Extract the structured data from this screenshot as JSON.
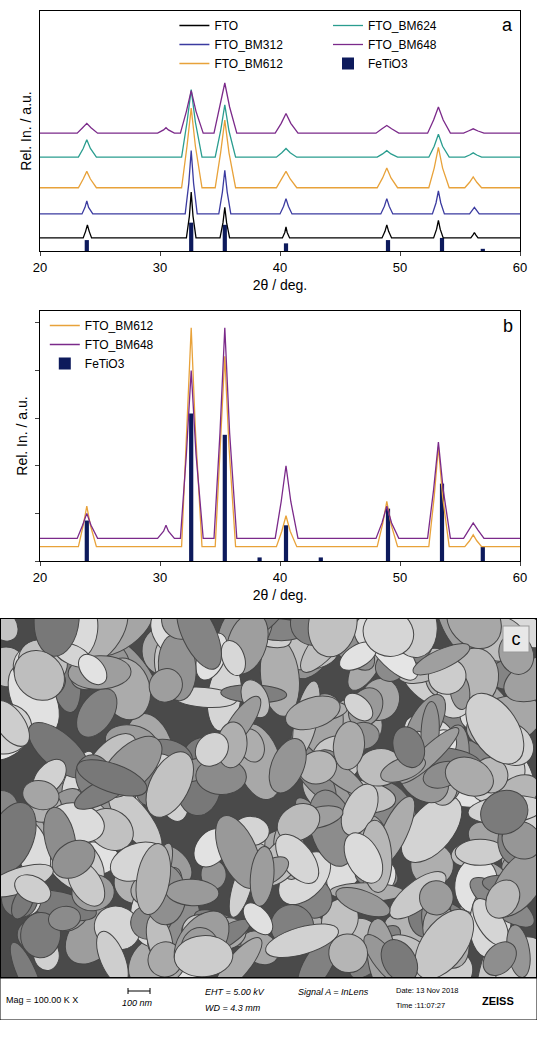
{
  "chart_data": [
    {
      "type": "line",
      "annotations": [
        "a"
      ],
      "x_label": "2θ / deg.",
      "y_label": "Rel. In. / a.u.",
      "xlim": [
        20,
        60
      ],
      "xticks": [
        20,
        30,
        40,
        50,
        60
      ],
      "ylim": [
        0,
        11
      ],
      "tick_labels": "x",
      "grid": false,
      "legend": "top",
      "series": [
        {
          "name": "FTO",
          "color": "#000000",
          "x": [
            20,
            23.6,
            23.8,
            23.95,
            24.1,
            24.3,
            32.2,
            32.45,
            32.6,
            32.75,
            33.0,
            35.0,
            35.25,
            35.4,
            35.55,
            35.8,
            40.2,
            40.4,
            40.5,
            40.6,
            40.8,
            48.5,
            48.75,
            48.9,
            49.05,
            49.3,
            52.8,
            53.05,
            53.2,
            53.35,
            53.6,
            55.9,
            56.1,
            56.2,
            56.3,
            56.5,
            60
          ],
          "values": [
            0.6,
            0.6,
            0.9,
            1.2,
            0.9,
            0.6,
            0.6,
            1.6,
            2.7,
            1.6,
            0.6,
            0.6,
            1.3,
            2.0,
            1.3,
            0.6,
            0.6,
            0.85,
            1.1,
            0.85,
            0.6,
            0.6,
            0.9,
            1.2,
            0.9,
            0.6,
            0.6,
            1.0,
            1.4,
            1.0,
            0.6,
            0.6,
            0.75,
            0.85,
            0.75,
            0.6,
            0.6
          ]
        },
        {
          "name": "FTO_BM312",
          "color": "#3b3ba0",
          "x": [
            20,
            23.5,
            23.75,
            23.9,
            24.05,
            24.4,
            32.1,
            32.4,
            32.6,
            32.8,
            33.1,
            34.9,
            35.2,
            35.4,
            35.6,
            35.9,
            40.0,
            40.3,
            40.5,
            40.7,
            41.0,
            48.4,
            48.7,
            48.9,
            49.1,
            49.4,
            52.7,
            53.0,
            53.2,
            53.4,
            53.7,
            55.8,
            56.0,
            56.2,
            56.4,
            56.6,
            60
          ],
          "values": [
            1.7,
            1.7,
            2.0,
            2.3,
            2.0,
            1.7,
            1.7,
            3.1,
            4.6,
            3.1,
            1.7,
            1.7,
            2.7,
            3.7,
            2.7,
            1.7,
            1.7,
            2.05,
            2.4,
            2.05,
            1.7,
            1.7,
            2.05,
            2.4,
            2.05,
            1.7,
            1.7,
            2.2,
            2.75,
            2.2,
            1.7,
            1.7,
            1.85,
            2.0,
            1.85,
            1.7,
            1.7
          ]
        },
        {
          "name": "FTO_BM612",
          "color": "#e8a23a",
          "x": [
            20,
            23.2,
            23.6,
            23.9,
            24.2,
            24.7,
            31.8,
            32.25,
            32.6,
            32.95,
            33.5,
            34.6,
            35.05,
            35.4,
            35.75,
            36.3,
            39.7,
            40.15,
            40.5,
            40.85,
            41.4,
            48.1,
            48.55,
            48.9,
            49.25,
            49.8,
            52.4,
            52.85,
            53.2,
            53.55,
            54.1,
            55.4,
            55.8,
            56.1,
            56.4,
            56.8,
            60
          ],
          "values": [
            2.9,
            2.9,
            3.3,
            3.65,
            3.3,
            2.9,
            2.9,
            4.8,
            6.55,
            4.8,
            2.9,
            2.9,
            4.5,
            6.0,
            4.5,
            2.9,
            2.9,
            3.3,
            3.65,
            3.3,
            2.9,
            2.9,
            3.35,
            3.8,
            3.35,
            2.9,
            2.9,
            3.8,
            4.75,
            3.8,
            2.9,
            2.9,
            3.15,
            3.4,
            3.15,
            2.9,
            2.9
          ]
        },
        {
          "name": "FTO_BM624",
          "color": "#2a9d8f",
          "x": [
            20,
            23.2,
            23.6,
            23.9,
            24.2,
            24.7,
            31.8,
            32.25,
            32.6,
            32.95,
            33.5,
            34.6,
            35.05,
            35.4,
            35.75,
            36.3,
            39.7,
            40.15,
            40.5,
            40.85,
            41.4,
            48.1,
            48.55,
            48.9,
            49.25,
            49.8,
            52.4,
            52.85,
            53.2,
            53.55,
            54.1,
            55.4,
            55.8,
            56.1,
            56.4,
            56.8,
            60
          ],
          "values": [
            4.3,
            4.3,
            4.7,
            5.1,
            4.7,
            4.3,
            4.3,
            5.9,
            7.4,
            5.9,
            4.3,
            4.3,
            5.5,
            6.7,
            5.5,
            4.3,
            4.3,
            4.5,
            4.7,
            4.5,
            4.3,
            4.3,
            4.45,
            4.6,
            4.45,
            4.3,
            4.3,
            4.8,
            5.35,
            4.8,
            4.3,
            4.3,
            4.4,
            4.5,
            4.4,
            4.3,
            4.3
          ]
        },
        {
          "name": "FTO_BM648",
          "color": "#7b2a8a",
          "x": [
            20,
            23.1,
            23.55,
            23.9,
            24.25,
            24.8,
            29.8,
            30.3,
            30.5,
            30.7,
            31.2,
            31.7,
            32.2,
            32.6,
            33.0,
            33.6,
            34.5,
            35.0,
            35.4,
            35.8,
            36.4,
            39.6,
            40.1,
            40.5,
            40.9,
            41.5,
            48.0,
            48.5,
            48.9,
            49.3,
            49.9,
            52.3,
            52.8,
            53.2,
            53.6,
            54.2,
            55.3,
            55.7,
            56.1,
            56.5,
            57.0,
            60
          ],
          "values": [
            5.4,
            5.4,
            5.65,
            5.85,
            5.65,
            5.4,
            5.4,
            5.55,
            5.65,
            5.55,
            5.4,
            5.4,
            6.4,
            7.35,
            6.4,
            5.4,
            5.4,
            6.6,
            7.7,
            6.6,
            5.4,
            5.4,
            5.85,
            6.3,
            5.85,
            5.4,
            5.4,
            5.6,
            5.75,
            5.6,
            5.4,
            5.4,
            6.0,
            6.6,
            6.0,
            5.4,
            5.4,
            5.5,
            5.6,
            5.5,
            5.4,
            5.4
          ]
        },
        {
          "name": "FeTiO3",
          "type": "bar",
          "color": "#0d1a5c",
          "x": [
            23.9,
            32.6,
            35.4,
            40.5,
            49.0,
            53.5,
            56.9
          ],
          "values": [
            0.5,
            1.3,
            1.2,
            0.35,
            0.5,
            0.6,
            0.1
          ]
        }
      ]
    },
    {
      "type": "line",
      "annotations": [
        "b"
      ],
      "x_label": "2θ / deg.",
      "y_label": "Rel. In. / a.u.",
      "xlim": [
        20,
        60
      ],
      "xticks": [
        20,
        30,
        40,
        50,
        60
      ],
      "ylim": [
        0,
        10.5
      ],
      "yticks": [
        0,
        2,
        4,
        6,
        8,
        10
      ],
      "tick_labels": "x",
      "grid": false,
      "legend": "top left",
      "series": [
        {
          "name": "FTO_BM612",
          "color": "#e8a23a",
          "x": [
            20,
            23.2,
            23.6,
            23.9,
            24.2,
            24.7,
            31.8,
            32.25,
            32.6,
            32.95,
            33.5,
            34.6,
            35.05,
            35.4,
            35.75,
            36.3,
            39.7,
            40.15,
            40.5,
            40.85,
            41.4,
            48.1,
            48.55,
            48.9,
            49.25,
            49.8,
            52.4,
            52.85,
            53.2,
            53.55,
            54.1,
            55.4,
            55.8,
            56.1,
            56.4,
            56.8,
            60
          ],
          "values": [
            0.6,
            0.6,
            1.5,
            2.3,
            1.5,
            0.6,
            0.6,
            5.5,
            9.8,
            5.5,
            0.6,
            0.6,
            4.8,
            8.6,
            4.8,
            0.6,
            0.6,
            1.25,
            1.9,
            1.25,
            0.6,
            0.6,
            1.55,
            2.5,
            1.55,
            0.6,
            0.6,
            2.7,
            4.8,
            2.7,
            0.6,
            0.6,
            0.85,
            1.1,
            0.85,
            0.6,
            0.6
          ]
        },
        {
          "name": "FTO_BM648",
          "color": "#7b2a8a",
          "x": [
            20,
            23.1,
            23.55,
            23.9,
            24.25,
            24.8,
            29.8,
            30.3,
            30.5,
            30.7,
            31.2,
            31.7,
            32.2,
            32.6,
            33.0,
            33.6,
            34.5,
            35.0,
            35.4,
            35.8,
            36.4,
            39.6,
            40.1,
            40.5,
            40.9,
            41.5,
            48.0,
            48.5,
            48.9,
            49.3,
            49.9,
            52.3,
            52.8,
            53.2,
            53.6,
            54.2,
            55.3,
            55.7,
            56.1,
            56.5,
            57.0,
            60
          ],
          "values": [
            0.95,
            0.95,
            1.5,
            2.0,
            1.5,
            0.95,
            0.95,
            1.25,
            1.5,
            1.25,
            0.95,
            0.95,
            4.5,
            8.0,
            4.5,
            0.95,
            0.95,
            5.4,
            9.8,
            5.4,
            0.95,
            0.95,
            2.5,
            4.0,
            2.5,
            0.95,
            0.95,
            1.6,
            2.3,
            1.6,
            0.95,
            0.95,
            3.0,
            5.0,
            3.0,
            0.95,
            0.95,
            1.3,
            1.6,
            1.3,
            0.95,
            0.95
          ]
        },
        {
          "name": "FeTiO3",
          "type": "bar",
          "color": "#0d1a5c",
          "x": [
            23.9,
            32.6,
            35.4,
            38.3,
            40.5,
            43.4,
            49.0,
            53.5,
            56.9
          ],
          "values": [
            1.7,
            6.2,
            5.3,
            0.15,
            1.5,
            0.15,
            2.2,
            3.25,
            0.6
          ]
        }
      ]
    }
  ],
  "sem_image": {
    "annotations": [
      "c"
    ],
    "info_bar": {
      "magnification": "Mag = 100.00 K X",
      "scale_bar": "100 nm",
      "eht": "EHT = 5.00 kV",
      "wd": "WD = 4.3 mm",
      "signal": "Signal A = InLens",
      "date": "Date: 13 Nov 2018",
      "time": "Time :11:07:27",
      "brand": "ZEISS"
    }
  }
}
